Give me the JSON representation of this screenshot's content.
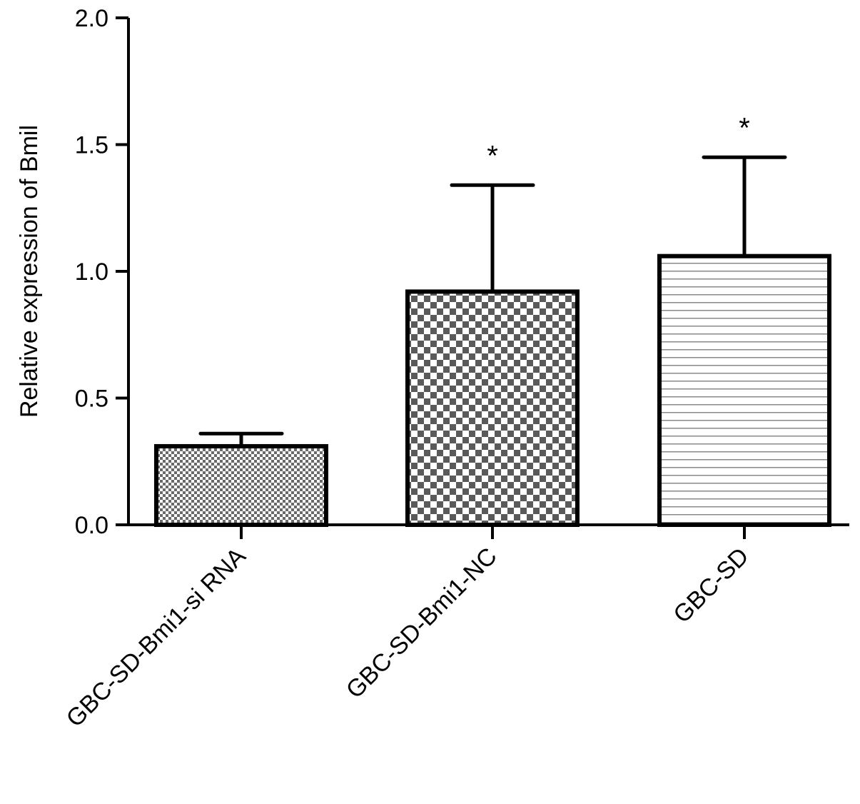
{
  "chart_data": {
    "type": "bar",
    "title": "",
    "xlabel": "",
    "ylabel": "Relative expression of Bmil",
    "ylim": [
      0,
      2.0
    ],
    "yticks": [
      "0.0",
      "0.5",
      "1.0",
      "1.5",
      "2.0"
    ],
    "categories": [
      "GBC-SD-Bmi1-si RNA",
      "GBC-SD-Bmi1-NC",
      "GBC-SD"
    ],
    "values": [
      0.31,
      0.92,
      1.06
    ],
    "error_upper": [
      0.36,
      1.34,
      1.45
    ],
    "significance": [
      "",
      "*",
      "*"
    ],
    "patterns": [
      "fine-checker",
      "coarse-checker",
      "horizontal-lines"
    ],
    "grid": false,
    "legend": "none"
  }
}
